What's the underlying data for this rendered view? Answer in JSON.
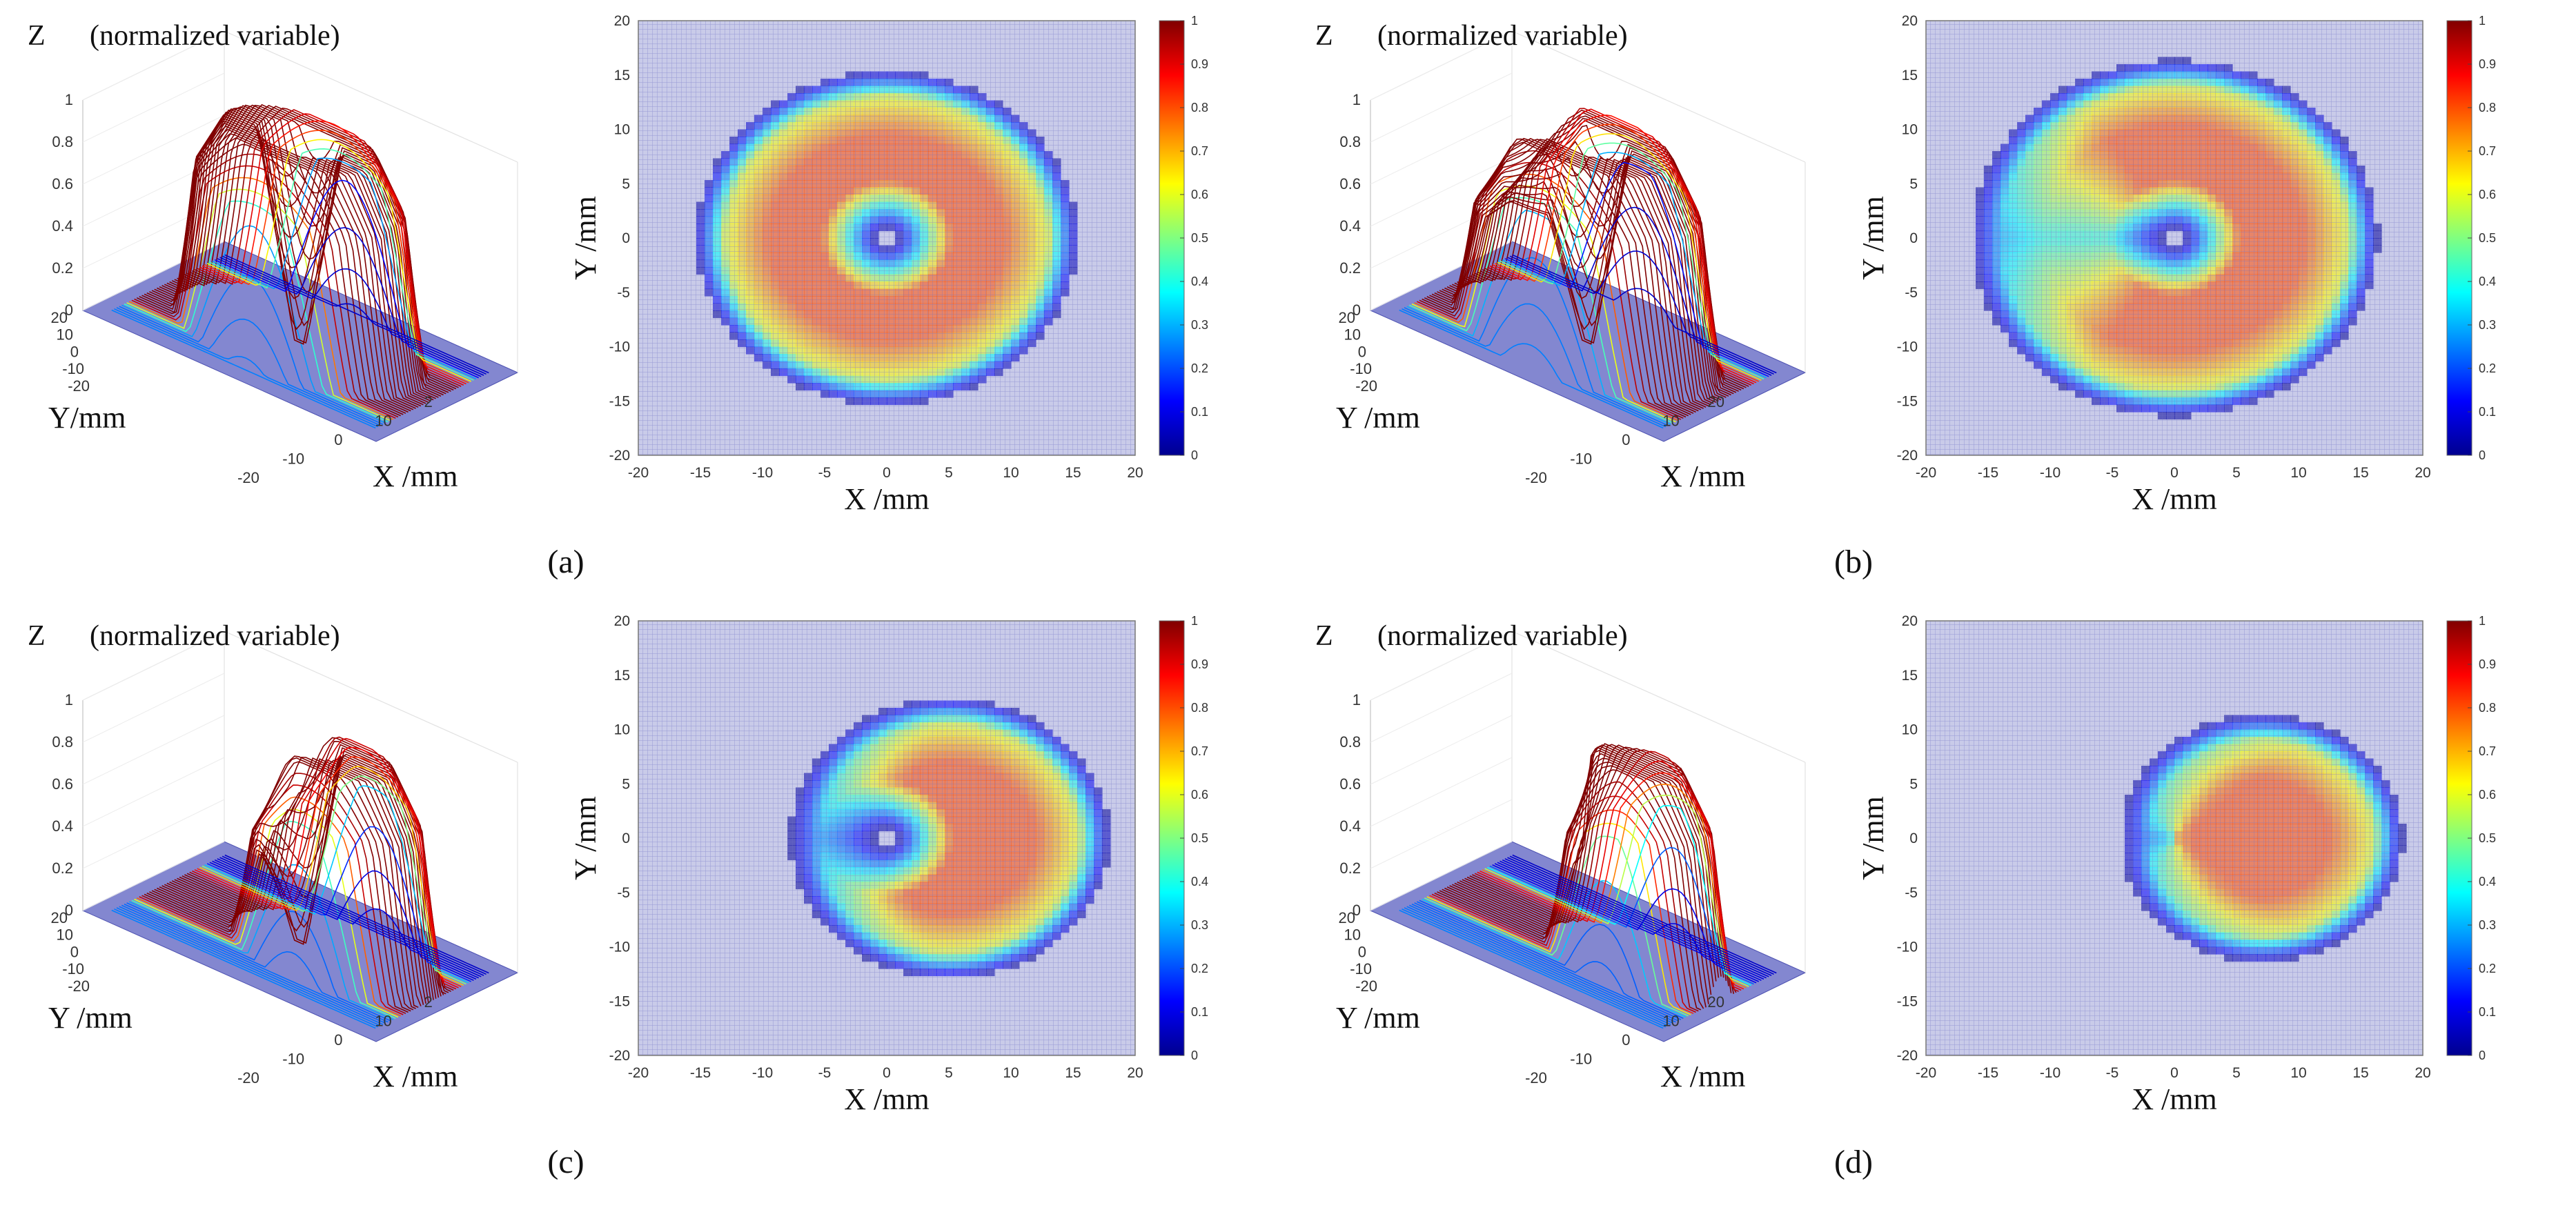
{
  "chart_data": [
    {
      "type": "heatmap",
      "panel": "a",
      "caption": "(a)",
      "surface": {
        "title": "Z",
        "title_note": "(normalized variable)",
        "xlabel": "X /mm",
        "ylabel": "Y/mm",
        "zticks": [
          "0",
          "0.2",
          "0.4",
          "0.6",
          "0.8",
          "1"
        ],
        "yticks": [
          "20",
          "10",
          "0",
          "-10",
          "-20"
        ],
        "xticks": [
          "-20",
          "-10",
          "0",
          "10",
          "2"
        ]
      },
      "map": {
        "xlabel": "X /mm",
        "ylabel": "Y /mm",
        "xticks": [
          "-20",
          "-15",
          "-10",
          "-5",
          "0",
          "5",
          "10",
          "15",
          "20"
        ],
        "yticks": [
          "20",
          "15",
          "10",
          "5",
          "0",
          "-5",
          "-10",
          "-15",
          "-20"
        ],
        "xlim": [
          -20,
          20
        ],
        "ylim": [
          -20,
          20
        ]
      },
      "colorbar": {
        "ticks": [
          "1",
          "0.9",
          "0.8",
          "0.7",
          "0.6",
          "0.5",
          "0.4",
          "0.3",
          "0.2",
          "0.1",
          "0"
        ],
        "range": [
          0,
          1
        ]
      },
      "distribution": {
        "shape": "annulus",
        "center": [
          0,
          0
        ],
        "inner_radius_mm": 2.5,
        "outer_radius_mm": 13,
        "peak_value": 0.8,
        "crescent_min_angle_deg": null
      }
    },
    {
      "type": "heatmap",
      "panel": "b",
      "caption": "(b)",
      "surface": {
        "title": "Z",
        "title_note": "(normalized variable)",
        "xlabel": "X /mm",
        "ylabel": "Y /mm",
        "zticks": [
          "0",
          "0.2",
          "0.4",
          "0.6",
          "0.8",
          "1"
        ],
        "yticks": [
          "20",
          "10",
          "0",
          "-10",
          "-20"
        ],
        "xticks": [
          "-20",
          "-10",
          "0",
          "10",
          "20"
        ]
      },
      "map": {
        "xlabel": "X /mm",
        "ylabel": "Y /mm",
        "xticks": [
          "-20",
          "-15",
          "-10",
          "-5",
          "0",
          "5",
          "10",
          "15",
          "20"
        ],
        "yticks": [
          "20",
          "15",
          "10",
          "5",
          "0",
          "-5",
          "-10",
          "-15",
          "-20"
        ],
        "xlim": [
          -20,
          20
        ],
        "ylim": [
          -20,
          20
        ]
      },
      "colorbar": {
        "ticks": [
          "1",
          "0.9",
          "0.8",
          "0.7",
          "0.6",
          "0.5",
          "0.4",
          "0.3",
          "0.2",
          "0.1",
          "0"
        ],
        "range": [
          0,
          1
        ]
      },
      "distribution": {
        "shape": "eccentric annulus",
        "center": [
          0,
          0
        ],
        "inner_radius_mm": 2.5,
        "outer_radius_mm": 14,
        "peak_value": 0.8,
        "crescent_min_angle_deg": 120
      }
    },
    {
      "type": "heatmap",
      "panel": "c",
      "caption": "(c)",
      "surface": {
        "title": "Z",
        "title_note": "(normalized variable)",
        "xlabel": "X /mm",
        "ylabel": "Y /mm",
        "zticks": [
          "0",
          "0.2",
          "0.4",
          "0.6",
          "0.8",
          "1"
        ],
        "yticks": [
          "20",
          "10",
          "0",
          "-10",
          "-20"
        ],
        "xticks": [
          "-20",
          "-10",
          "0",
          "10",
          "2"
        ]
      },
      "map": {
        "xlabel": "X /mm",
        "ylabel": "Y /mm",
        "xticks": [
          "-20",
          "-15",
          "-10",
          "-5",
          "0",
          "5",
          "10",
          "15",
          "20"
        ],
        "yticks": [
          "20",
          "15",
          "10",
          "5",
          "0",
          "-5",
          "-10",
          "-15",
          "-20"
        ],
        "xlim": [
          -20,
          20
        ],
        "ylim": [
          -20,
          20
        ]
      },
      "colorbar": {
        "ticks": [
          "1",
          "0.9",
          "0.8",
          "0.7",
          "0.6",
          "0.5",
          "0.4",
          "0.3",
          "0.2",
          "0.1",
          "0"
        ],
        "range": [
          0,
          1
        ]
      },
      "distribution": {
        "shape": "crescent",
        "center": [
          5,
          0
        ],
        "inner_radius_mm": 2.5,
        "outer_radius_mm": 10.5,
        "peak_value": 0.8,
        "crescent_min_angle_deg": 70
      }
    },
    {
      "type": "heatmap",
      "panel": "d",
      "caption": "(d)",
      "surface": {
        "title": "Z",
        "title_note": "(normalized variable)",
        "xlabel": "X /mm",
        "ylabel": "Y /mm",
        "zticks": [
          "0",
          "0.2",
          "0.4",
          "0.6",
          "0.8",
          "1"
        ],
        "yticks": [
          "20",
          "10",
          "0",
          "-10",
          "-20"
        ],
        "xticks": [
          "-20",
          "-10",
          "0",
          "10",
          "20"
        ]
      },
      "map": {
        "xlabel": "X /mm",
        "ylabel": "Y /mm",
        "xticks": [
          "-20",
          "-15",
          "-10",
          "-5",
          "0",
          "5",
          "10",
          "15",
          "20"
        ],
        "yticks": [
          "20",
          "15",
          "10",
          "5",
          "0",
          "-5",
          "-10",
          "-15",
          "-20"
        ],
        "xlim": [
          -20,
          20
        ],
        "ylim": [
          -20,
          20
        ]
      },
      "colorbar": {
        "ticks": [
          "1",
          "0.9",
          "0.8",
          "0.7",
          "0.6",
          "0.5",
          "0.4",
          "0.3",
          "0.2",
          "0.1",
          "0"
        ],
        "range": [
          0,
          1
        ]
      },
      "distribution": {
        "shape": "half crescent",
        "center": [
          7,
          0
        ],
        "inner_radius_mm": 0,
        "outer_radius_mm": 9,
        "peak_value": 0.8,
        "crescent_min_angle_deg": 40
      }
    }
  ]
}
